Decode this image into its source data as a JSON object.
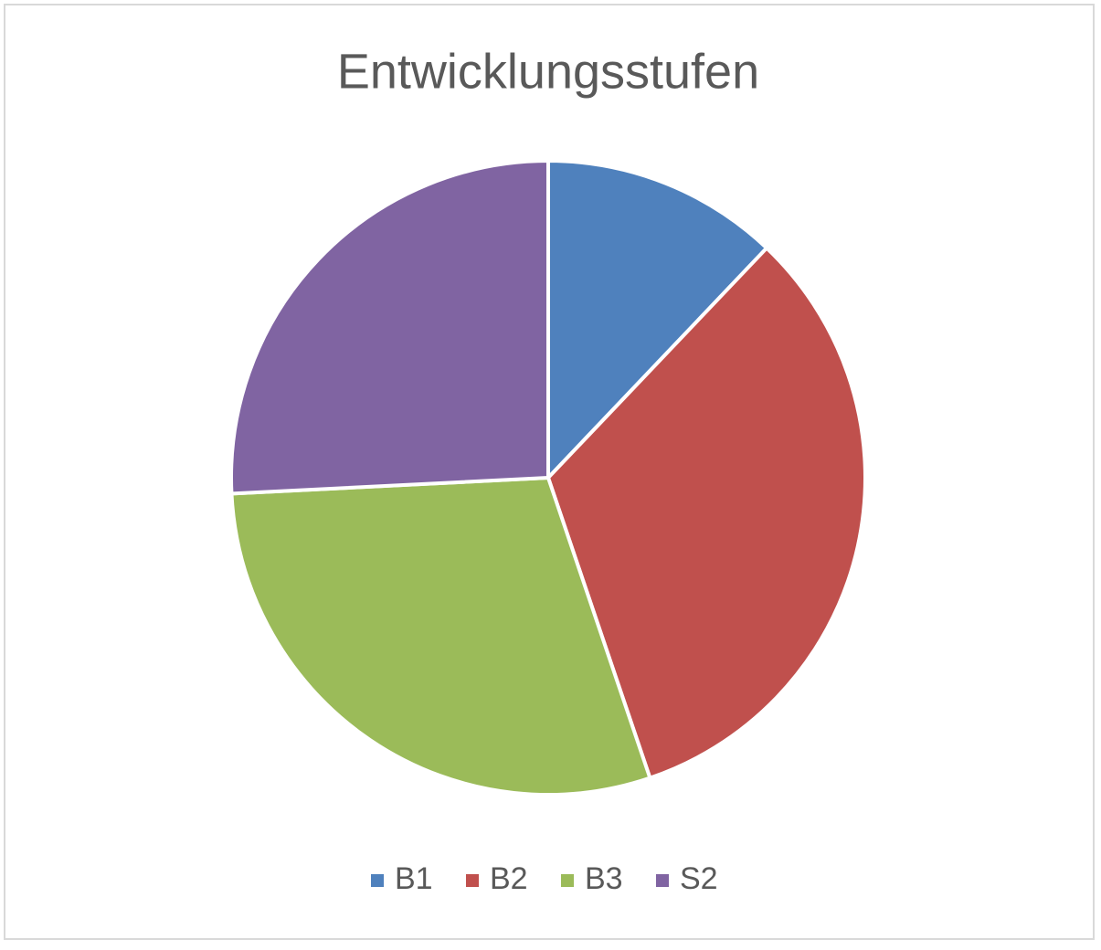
{
  "chart_data": {
    "type": "pie",
    "title": "Entwicklungsstufen",
    "categories": [
      "B1",
      "B2",
      "B3",
      "S2"
    ],
    "values": [
      12.1,
      32.7,
      29.4,
      25.8
    ],
    "colors": [
      "#4f81bd",
      "#c0504d",
      "#9bbb59",
      "#8064a2"
    ],
    "legend": "bottom"
  }
}
